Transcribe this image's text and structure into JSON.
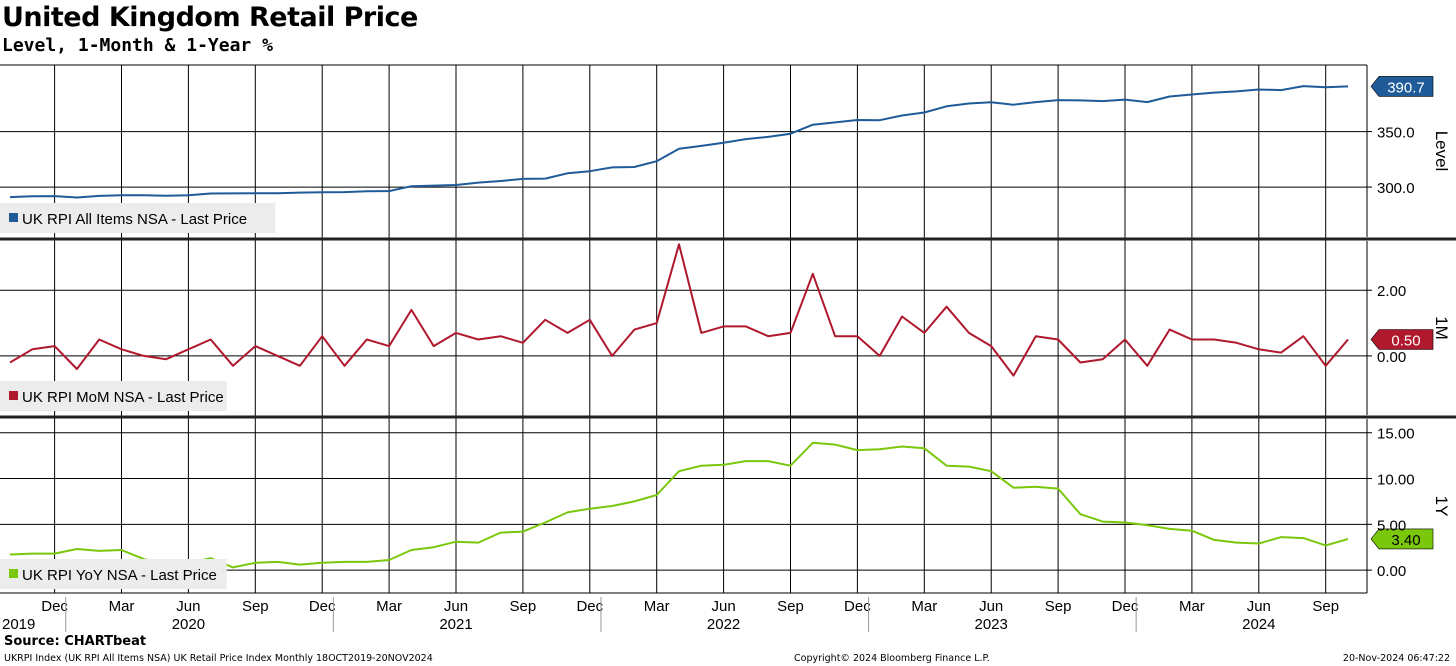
{
  "title": "United Kingdom Retail Price",
  "subtitle": "Level, 1-Month & 1-Year %",
  "source": "Source: CHARTbeat",
  "footer": {
    "left": "UKRPI Index (UK RPI All Items NSA) UK Retail Price Index  Monthly 18OCT2019-20NOV2024",
    "center": "Copyright© 2024 Bloomberg Finance L.P.",
    "right": "20-Nov-2024 06:47:22"
  },
  "chart_data": {
    "type": "line",
    "x": [
      "2019-10",
      "2019-11",
      "2019-12",
      "2020-01",
      "2020-02",
      "2020-03",
      "2020-04",
      "2020-05",
      "2020-06",
      "2020-07",
      "2020-08",
      "2020-09",
      "2020-10",
      "2020-11",
      "2020-12",
      "2021-01",
      "2021-02",
      "2021-03",
      "2021-04",
      "2021-05",
      "2021-06",
      "2021-07",
      "2021-08",
      "2021-09",
      "2021-10",
      "2021-11",
      "2021-12",
      "2022-01",
      "2022-02",
      "2022-03",
      "2022-04",
      "2022-05",
      "2022-06",
      "2022-07",
      "2022-08",
      "2022-09",
      "2022-10",
      "2022-11",
      "2022-12",
      "2023-01",
      "2023-02",
      "2023-03",
      "2023-04",
      "2023-05",
      "2023-06",
      "2023-07",
      "2023-08",
      "2023-09",
      "2023-10",
      "2023-11",
      "2023-12",
      "2024-01",
      "2024-02",
      "2024-03",
      "2024-04",
      "2024-05",
      "2024-06",
      "2024-07",
      "2024-08",
      "2024-09",
      "2024-10"
    ],
    "x_ticks": [
      {
        "label": "Dec",
        "x": "2019-12"
      },
      {
        "label": "Mar",
        "x": "2020-03"
      },
      {
        "label": "Jun",
        "x": "2020-06"
      },
      {
        "label": "Sep",
        "x": "2020-09"
      },
      {
        "label": "Dec",
        "x": "2020-12"
      },
      {
        "label": "Mar",
        "x": "2021-03"
      },
      {
        "label": "Jun",
        "x": "2021-06"
      },
      {
        "label": "Sep",
        "x": "2021-09"
      },
      {
        "label": "Dec",
        "x": "2021-12"
      },
      {
        "label": "Mar",
        "x": "2022-03"
      },
      {
        "label": "Jun",
        "x": "2022-06"
      },
      {
        "label": "Sep",
        "x": "2022-09"
      },
      {
        "label": "Dec",
        "x": "2022-12"
      },
      {
        "label": "Mar",
        "x": "2023-03"
      },
      {
        "label": "Jun",
        "x": "2023-06"
      },
      {
        "label": "Sep",
        "x": "2023-09"
      },
      {
        "label": "Dec",
        "x": "2023-12"
      },
      {
        "label": "Mar",
        "x": "2024-03"
      },
      {
        "label": "Jun",
        "x": "2024-06"
      },
      {
        "label": "Sep",
        "x": "2024-09"
      }
    ],
    "year_labels": [
      {
        "label": "2019",
        "x": "2019-10"
      },
      {
        "label": "2020",
        "x": "2020-06"
      },
      {
        "label": "2021",
        "x": "2021-06"
      },
      {
        "label": "2022",
        "x": "2022-06"
      },
      {
        "label": "2023",
        "x": "2023-06"
      },
      {
        "label": "2024",
        "x": "2024-06"
      }
    ],
    "panels": [
      {
        "axis_label": "Level",
        "ylim": [
          255,
          410
        ],
        "ticks": [
          {
            "value": 300,
            "label": "300.0"
          },
          {
            "value": 350,
            "label": "350.0"
          }
        ],
        "legend": "UK RPI All Items NSA - Last Price",
        "color": "#1f5b99",
        "last_label": "390.7",
        "values": [
          291.0,
          291.7,
          291.9,
          290.6,
          292.0,
          292.6,
          292.6,
          292.2,
          292.7,
          294.2,
          294.3,
          294.4,
          294.5,
          295.0,
          295.3,
          295.5,
          296.3,
          296.4,
          300.8,
          301.3,
          301.9,
          304.0,
          305.5,
          307.4,
          307.6,
          312.4,
          314.3,
          317.7,
          318.1,
          323.3,
          334.6,
          337.1,
          340.0,
          343.2,
          345.2,
          348.1,
          356.2,
          358.3,
          360.4,
          360.3,
          364.5,
          367.2,
          372.8,
          375.3,
          376.4,
          374.2,
          376.6,
          378.4,
          378.1,
          377.5,
          378.8,
          376.6,
          381.6,
          383.4,
          385.1,
          386.2,
          387.9,
          387.4,
          391.0,
          389.9,
          390.7
        ]
      },
      {
        "axis_label": "1M",
        "ylim": [
          -1.8,
          3.5
        ],
        "ticks": [
          {
            "value": 2,
            "label": "2.00"
          },
          {
            "value": 0,
            "label": "0.00"
          }
        ],
        "legend": "UK RPI MoM NSA - Last Price",
        "color": "#b0182d",
        "last_label": "0.50",
        "values": [
          -0.2,
          0.2,
          0.3,
          -0.4,
          0.5,
          0.2,
          0.0,
          -0.1,
          0.2,
          0.5,
          -0.3,
          0.3,
          0.0,
          -0.3,
          0.6,
          -0.3,
          0.5,
          0.3,
          1.4,
          0.3,
          0.7,
          0.5,
          0.6,
          0.4,
          1.1,
          0.7,
          1.1,
          0.0,
          0.8,
          1.0,
          3.4,
          0.7,
          0.9,
          0.9,
          0.6,
          0.7,
          2.5,
          0.6,
          0.6,
          0.0,
          1.2,
          0.7,
          1.5,
          0.7,
          0.3,
          -0.6,
          0.6,
          0.5,
          -0.2,
          -0.1,
          0.5,
          -0.3,
          0.8,
          0.5,
          0.5,
          0.4,
          0.2,
          0.1,
          0.6,
          -0.3,
          0.5
        ]
      },
      {
        "axis_label": "1Y",
        "ylim": [
          -2.5,
          16.5
        ],
        "ticks": [
          {
            "value": 15,
            "label": "15.00"
          },
          {
            "value": 10,
            "label": "10.00"
          },
          {
            "value": 5,
            "label": "5.00"
          },
          {
            "value": 0,
            "label": "0.00"
          }
        ],
        "legend": "UK RPI YoY NSA - Last Price",
        "color": "#7ac70c",
        "last_label": "3.40",
        "values": [
          1.7,
          1.8,
          1.8,
          2.3,
          2.1,
          2.2,
          1.2,
          0.7,
          0.8,
          1.3,
          0.3,
          0.8,
          0.9,
          0.6,
          0.8,
          0.9,
          0.9,
          1.1,
          2.2,
          2.5,
          3.1,
          3.0,
          4.1,
          4.2,
          5.2,
          6.3,
          6.7,
          7.0,
          7.5,
          8.2,
          10.8,
          11.4,
          11.5,
          11.9,
          11.9,
          11.4,
          13.9,
          13.7,
          13.1,
          13.2,
          13.5,
          13.3,
          11.4,
          11.3,
          10.8,
          9.0,
          9.1,
          8.9,
          6.1,
          5.3,
          5.2,
          4.9,
          4.5,
          4.3,
          3.3,
          3.0,
          2.9,
          3.6,
          3.5,
          2.7,
          3.4
        ]
      }
    ]
  }
}
